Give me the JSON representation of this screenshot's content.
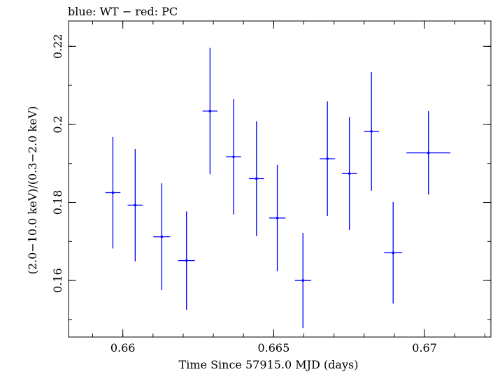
{
  "chart_data": {
    "type": "scatter",
    "title": "blue: WT − red: PC",
    "xlabel": "Time Since 57915.0 MJD (days)",
    "ylabel": "(2.0−10.0 keV)/(0.3−2.0 keV)",
    "xlim": [
      0.6582,
      0.6722
    ],
    "ylim": [
      0.1455,
      0.2265
    ],
    "x_ticks": [
      0.66,
      0.665,
      0.67
    ],
    "x_tick_labels": [
      "0.66",
      "0.665",
      "0.67"
    ],
    "y_ticks": [
      0.16,
      0.18,
      0.2,
      0.22
    ],
    "y_tick_labels": [
      "0.16",
      "0.18",
      "0.2",
      "0.22"
    ],
    "x_minor_step": 0.001,
    "y_minor_step": 0.01,
    "grid": false,
    "color": "#0000ff",
    "series": [
      {
        "points": [
          {
            "x": 0.65967,
            "xerr": 0.00025,
            "y": 0.1825,
            "yerr": 0.0143
          },
          {
            "x": 0.66041,
            "xerr": 0.00025,
            "y": 0.1793,
            "yerr": 0.0144
          },
          {
            "x": 0.66129,
            "xerr": 0.00028,
            "y": 0.1712,
            "yerr": 0.0137
          },
          {
            "x": 0.66211,
            "xerr": 0.00028,
            "y": 0.1651,
            "yerr": 0.0126
          },
          {
            "x": 0.66289,
            "xerr": 0.00025,
            "y": 0.2034,
            "yerr": 0.0162
          },
          {
            "x": 0.66367,
            "xerr": 0.00025,
            "y": 0.1917,
            "yerr": 0.0148
          },
          {
            "x": 0.66443,
            "xerr": 0.00025,
            "y": 0.1861,
            "yerr": 0.0147
          },
          {
            "x": 0.66512,
            "xerr": 0.00027,
            "y": 0.176,
            "yerr": 0.0136
          },
          {
            "x": 0.66597,
            "xerr": 0.00027,
            "y": 0.16,
            "yerr": 0.0122
          },
          {
            "x": 0.66678,
            "xerr": 0.00025,
            "y": 0.1912,
            "yerr": 0.0147
          },
          {
            "x": 0.66751,
            "xerr": 0.00025,
            "y": 0.1874,
            "yerr": 0.0145
          },
          {
            "x": 0.66824,
            "xerr": 0.00025,
            "y": 0.1982,
            "yerr": 0.0152
          },
          {
            "x": 0.66896,
            "xerr": 0.0003,
            "y": 0.1671,
            "yerr": 0.013
          },
          {
            "x": 0.67013,
            "xerr": 0.00073,
            "y": 0.1927,
            "yerr": 0.0107
          }
        ]
      }
    ]
  }
}
